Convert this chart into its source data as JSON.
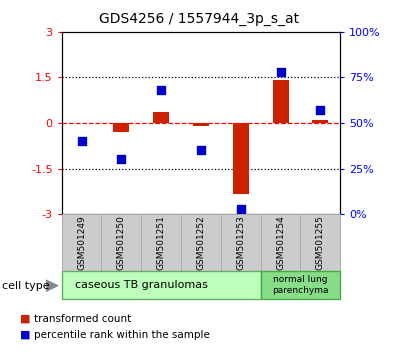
{
  "title": "GDS4256 / 1557944_3p_s_at",
  "samples": [
    "GSM501249",
    "GSM501250",
    "GSM501251",
    "GSM501252",
    "GSM501253",
    "GSM501254",
    "GSM501255"
  ],
  "transformed_count": [
    0.0,
    -0.3,
    0.35,
    -0.1,
    -2.35,
    1.4,
    0.1
  ],
  "percentile_rank": [
    40,
    30,
    68,
    35,
    3,
    78,
    57
  ],
  "ylim_left": [
    -3,
    3
  ],
  "ylim_right": [
    0,
    100
  ],
  "yticks_left": [
    -3,
    -1.5,
    0,
    1.5,
    3
  ],
  "yticks_right": [
    0,
    25,
    50,
    75,
    100
  ],
  "ytick_labels_left": [
    "-3",
    "-1.5",
    "0",
    "1.5",
    "3"
  ],
  "ytick_labels_right": [
    "0%",
    "25%",
    "50%",
    "75%",
    "100%"
  ],
  "bar_color": "#cc2200",
  "scatter_color": "#0000cc",
  "cell_type1_label": "caseous TB granulomas",
  "cell_type1_color": "#bbffbb",
  "cell_type1_n": 5,
  "cell_type2_label": "normal lung\nparenchyma",
  "cell_type2_color": "#88dd88",
  "cell_type2_n": 2,
  "legend_bar_label": "transformed count",
  "legend_scatter_label": "percentile rank within the sample",
  "cell_type_text": "cell type",
  "bg_color": "#ffffff",
  "bar_width": 0.4,
  "scatter_size": 30,
  "sample_box_color": "#cccccc",
  "sample_box_edge": "#aaaaaa"
}
